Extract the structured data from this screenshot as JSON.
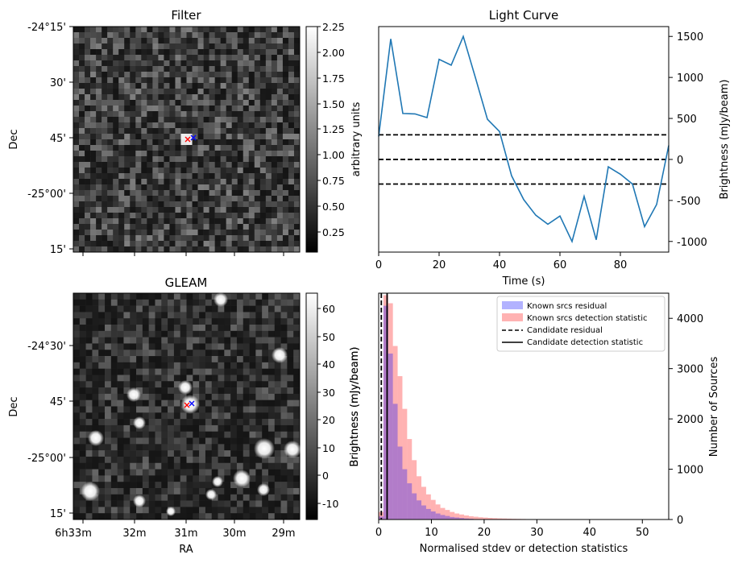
{
  "chart_data": [
    {
      "type": "heatmap",
      "title": "Filter",
      "xlabel": "",
      "ylabel": "Dec",
      "y_ticks": [
        "-24°15'",
        "30'",
        "45'",
        "-25°00'",
        "15'"
      ],
      "colorbar": {
        "label": "arbitrary units",
        "ticks": [
          "2.25",
          "2.00",
          "1.75",
          "1.50",
          "1.25",
          "1.00",
          "0.75",
          "0.50",
          "0.25"
        ],
        "range": [
          0.05,
          2.25
        ]
      },
      "markers": [
        {
          "symbol": "x",
          "color": "#ff0000"
        },
        {
          "symbol": "x",
          "color": "#0000ff"
        }
      ]
    },
    {
      "type": "line",
      "title": "Light Curve",
      "xlabel": "Time (s)",
      "ylabel": "Brightness (mJy/beam)",
      "xlim": [
        0,
        96
      ],
      "ylim": [
        -1130,
        1620
      ],
      "x_ticks": [
        0,
        20,
        40,
        60,
        80
      ],
      "y_ticks": [
        -1000,
        -500,
        0,
        500,
        1000,
        1500
      ],
      "series": [
        {
          "color": "#1f77b4",
          "x": [
            0,
            4,
            8,
            12,
            16,
            20,
            24,
            28,
            32,
            36,
            40,
            44,
            48,
            52,
            56,
            60,
            64,
            68,
            72,
            76,
            80,
            84,
            88,
            92,
            96
          ],
          "y": [
            280,
            1470,
            560,
            555,
            510,
            1220,
            1150,
            1500,
            1000,
            490,
            340,
            -200,
            -490,
            -680,
            -790,
            -690,
            -1000,
            -450,
            -980,
            -90,
            -180,
            -300,
            -820,
            -550,
            170
          ]
        }
      ],
      "hlines": [
        {
          "y": 300,
          "style": "dashed",
          "color": "#000000"
        },
        {
          "y": 0,
          "style": "dashed",
          "color": "#000000"
        },
        {
          "y": -300,
          "style": "dashed",
          "color": "#000000"
        }
      ]
    },
    {
      "type": "heatmap",
      "title": "GLEAM",
      "xlabel": "RA",
      "ylabel": "Dec",
      "x_ticks": [
        "6h33m",
        "32m",
        "31m",
        "30m",
        "29m"
      ],
      "y_ticks": [
        "-24°30'",
        "45'",
        "-25°00'",
        "15'"
      ],
      "colorbar": {
        "label": "Brightness (mJy/beam)",
        "ticks": [
          "60",
          "50",
          "40",
          "30",
          "20",
          "10",
          "0",
          "-10"
        ],
        "range": [
          -16,
          65
        ]
      },
      "markers": [
        {
          "symbol": "x",
          "color": "#ff0000"
        },
        {
          "symbol": "x",
          "color": "#0000ff"
        }
      ]
    },
    {
      "type": "bar",
      "xlabel": "Normalised stdev or detection statistics",
      "ylabel": "Number of Sources",
      "xlim": [
        0,
        55
      ],
      "ylim": [
        0,
        4500
      ],
      "x_ticks": [
        0,
        10,
        20,
        30,
        40,
        50
      ],
      "y_ticks": [
        0,
        1000,
        2000,
        3000,
        4000
      ],
      "legend_position": "top-right",
      "legend": [
        "Known srcs residual",
        "Known srcs detection statistic",
        "Candidate residual",
        "Candidate detection statistic"
      ],
      "bin_width": 0.9,
      "series": [
        {
          "name": "Known srcs residual",
          "color": "#0000ff",
          "alpha": 0.3,
          "values": [
            60,
            4250,
            3300,
            2300,
            1450,
            1000,
            720,
            520,
            380,
            280,
            210,
            160,
            120,
            90,
            70,
            50,
            40,
            30,
            20,
            15
          ]
        },
        {
          "name": "Known srcs detection statistic",
          "color": "#ff0000",
          "alpha": 0.3,
          "values": [
            150,
            4460,
            4300,
            3450,
            2850,
            2200,
            1600,
            1180,
            860,
            650,
            500,
            390,
            300,
            230,
            190,
            150,
            120,
            100,
            80,
            65,
            55,
            45,
            38,
            32,
            27,
            23,
            20,
            17,
            14,
            12,
            10,
            8,
            7,
            6,
            5,
            4,
            3,
            3,
            2,
            2
          ]
        }
      ],
      "vlines": [
        {
          "name": "Candidate residual",
          "x": 0.5,
          "style": "dashed",
          "color": "#000000"
        },
        {
          "name": "Candidate detection statistic",
          "x": 1.6,
          "style": "solid",
          "color": "#000000"
        }
      ],
      "secondary_ylabel": "Brightness (mJy/beam)"
    }
  ]
}
